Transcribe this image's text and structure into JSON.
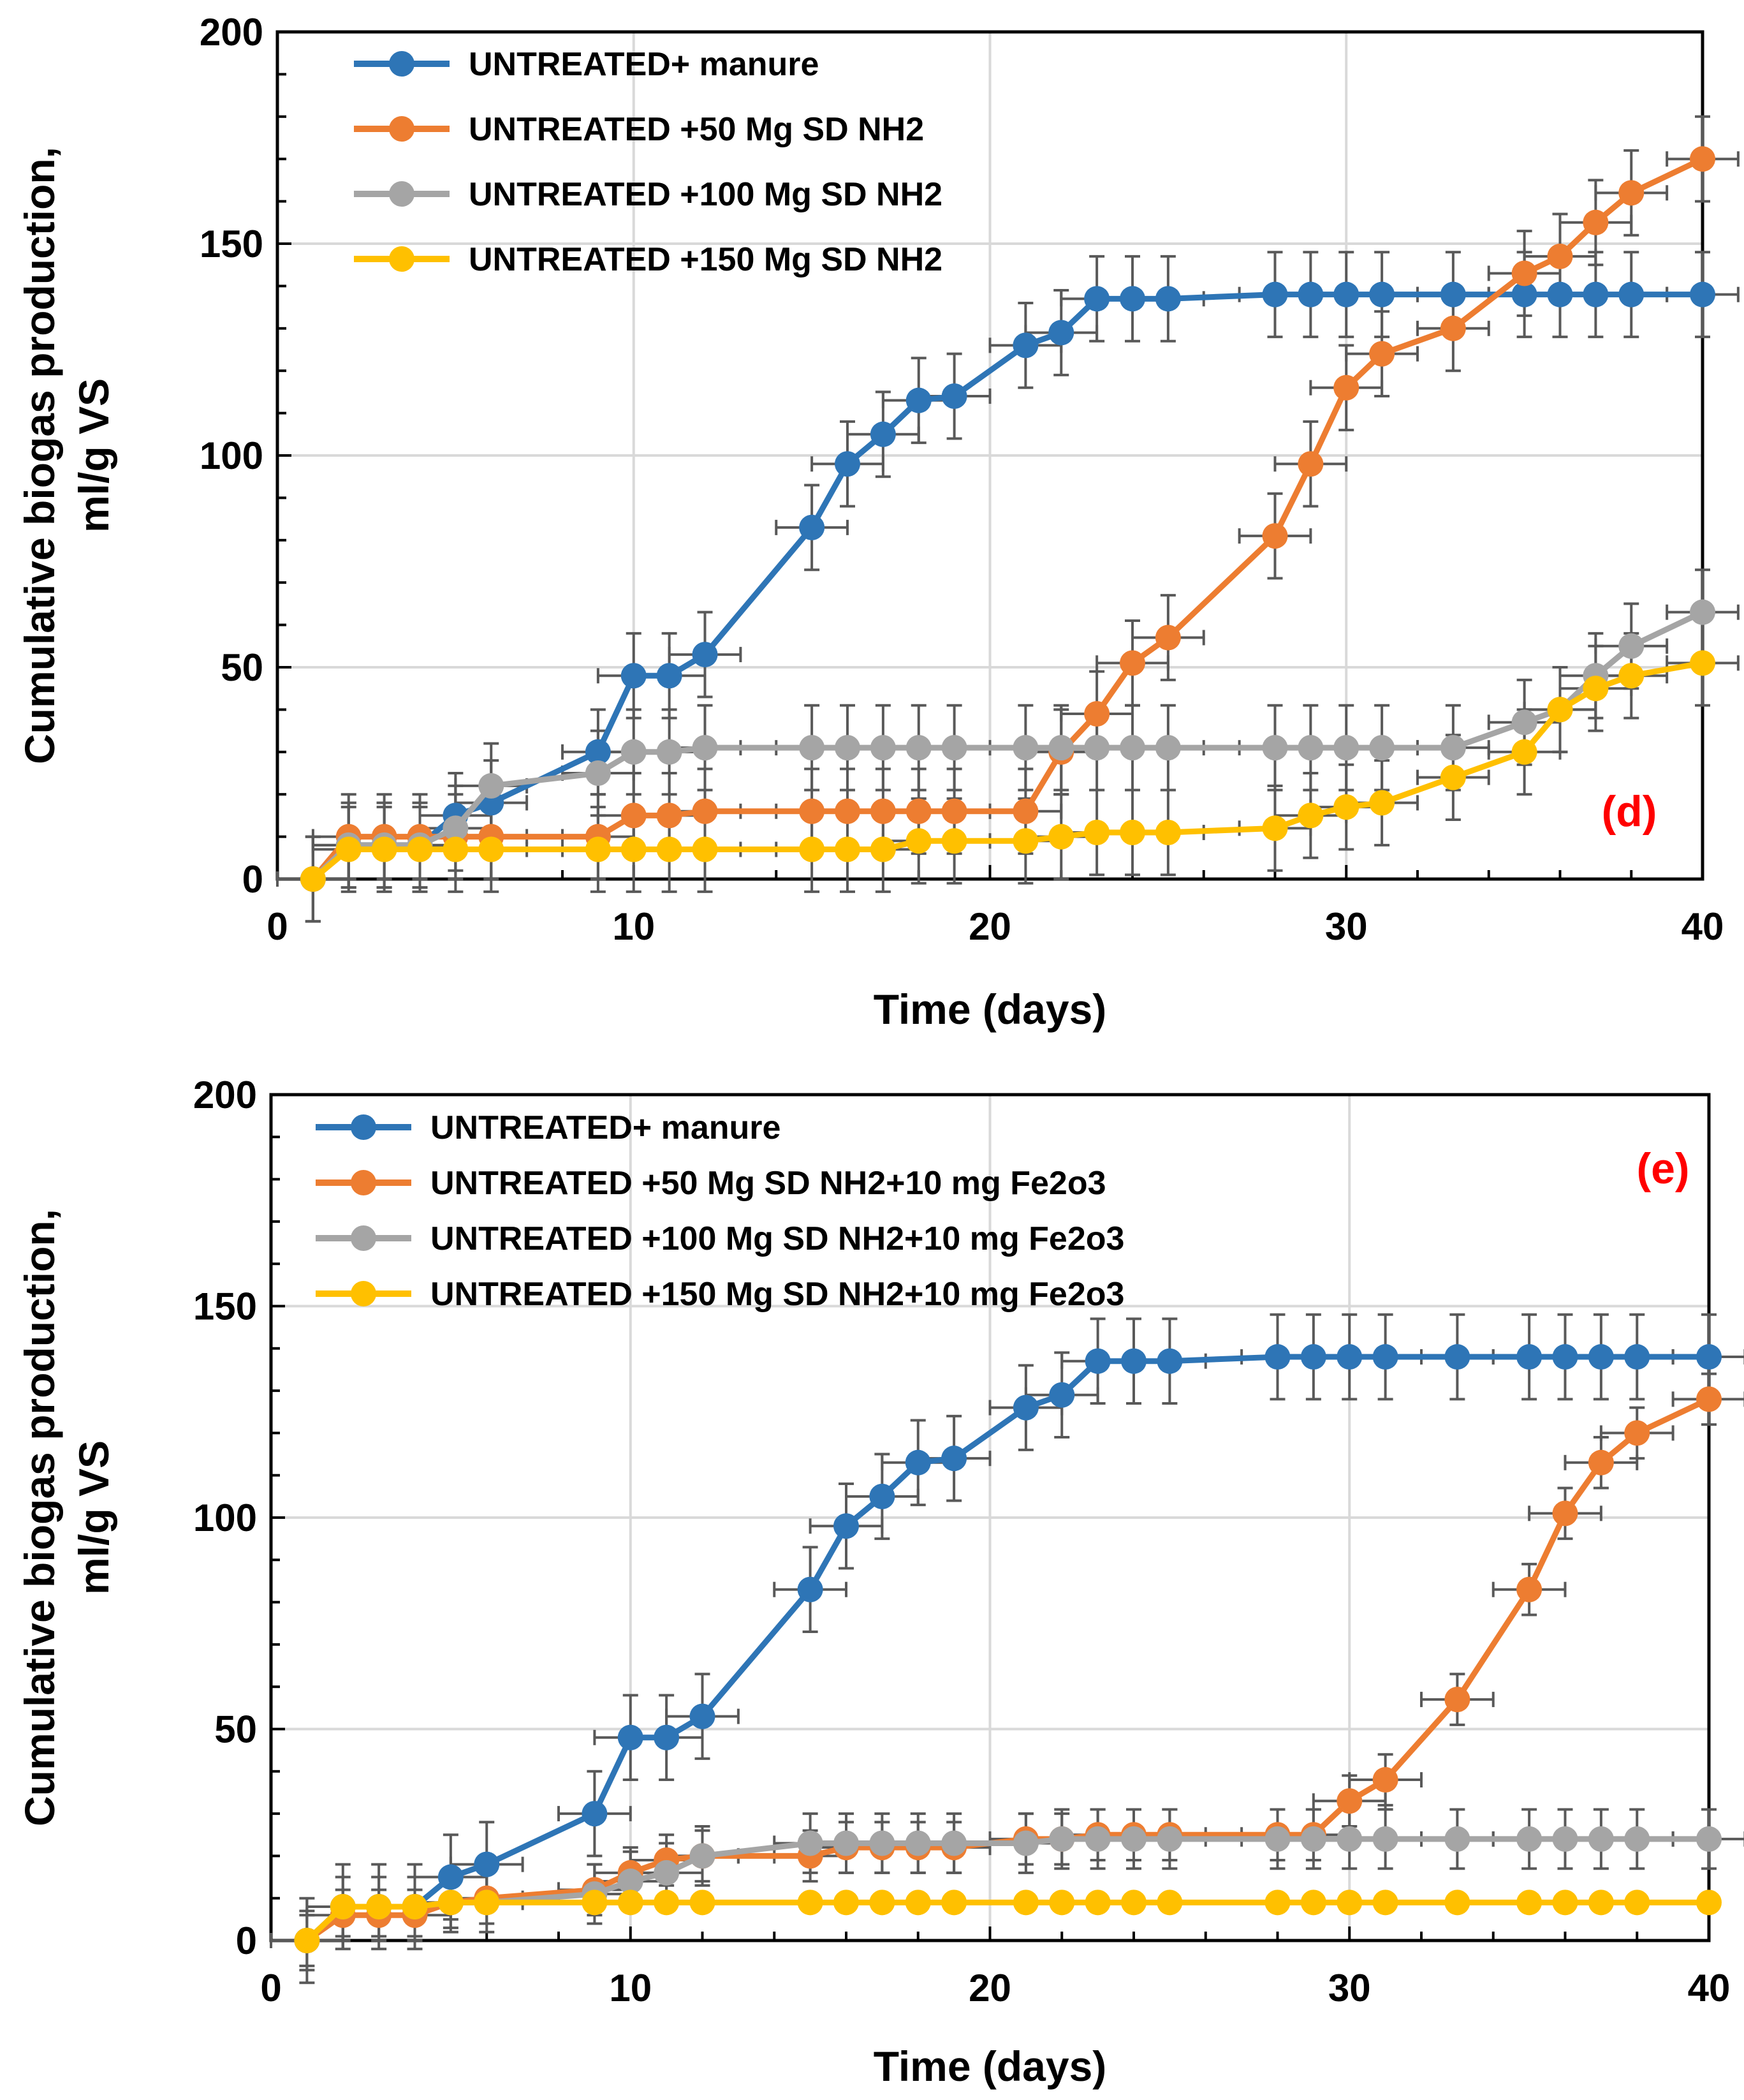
{
  "chart_data": [
    {
      "type": "line",
      "panel_label": "(d)",
      "panel_label_color": "#FF0000",
      "title": "",
      "xlabel": "Time (days)",
      "ylabel_lines": [
        "Cumulative biogas production,",
        "ml/g VS"
      ],
      "xlim": [
        0,
        40
      ],
      "ylim": [
        0,
        200
      ],
      "x_ticks": [
        0,
        10,
        20,
        30,
        40
      ],
      "y_ticks": [
        0,
        50,
        100,
        150,
        200
      ],
      "x_tick_labels": [
        "0",
        "10",
        "20",
        "30",
        "40"
      ],
      "y_tick_labels": [
        "0",
        "50",
        "100",
        "150",
        "200"
      ],
      "grid": true,
      "legend_position": "top-left",
      "series": [
        {
          "name": "UNTREATED+ manure",
          "color": "#2E75B6",
          "x": [
            1,
            2,
            3,
            4,
            5,
            6,
            9,
            10,
            11,
            12,
            15,
            16,
            17,
            18,
            19,
            21,
            22,
            23,
            24,
            25,
            28,
            29,
            30,
            31,
            33,
            35,
            36,
            37,
            38,
            40
          ],
          "y": [
            0,
            8,
            8,
            8,
            15,
            18,
            30,
            48,
            48,
            53,
            83,
            98,
            105,
            113,
            114,
            126,
            129,
            137,
            137,
            137,
            138,
            138,
            138,
            138,
            138,
            138,
            138,
            138,
            138,
            138
          ],
          "yerr": 10,
          "xerr": 1
        },
        {
          "name": "UNTREATED +50 Mg SD NH2",
          "color": "#ED7D31",
          "x": [
            1,
            2,
            3,
            4,
            5,
            6,
            9,
            10,
            11,
            12,
            15,
            16,
            17,
            18,
            19,
            21,
            22,
            23,
            24,
            25,
            28,
            29,
            30,
            31,
            33,
            35,
            36,
            37,
            38,
            40
          ],
          "y": [
            0,
            10,
            10,
            10,
            10,
            10,
            10,
            15,
            15,
            16,
            16,
            16,
            16,
            16,
            16,
            16,
            30,
            39,
            51,
            57,
            81,
            98,
            116,
            124,
            130,
            143,
            147,
            155,
            162,
            170
          ],
          "yerr": 10,
          "xerr": 1
        },
        {
          "name": "UNTREATED +100 Mg SD  NH2",
          "color": "#A5A5A5",
          "x": [
            1,
            2,
            3,
            4,
            5,
            6,
            9,
            10,
            11,
            12,
            15,
            16,
            17,
            18,
            19,
            21,
            22,
            23,
            24,
            25,
            28,
            29,
            30,
            31,
            33,
            35,
            36,
            37,
            38,
            40
          ],
          "y": [
            0,
            8,
            8,
            8,
            12,
            22,
            25,
            30,
            30,
            31,
            31,
            31,
            31,
            31,
            31,
            31,
            31,
            31,
            31,
            31,
            31,
            31,
            31,
            31,
            31,
            37,
            40,
            48,
            55,
            63
          ],
          "yerr": 10,
          "xerr": 1
        },
        {
          "name": "UNTREATED +150 Mg SD  NH2",
          "color": "#FFC000",
          "x": [
            1,
            2,
            3,
            4,
            5,
            6,
            9,
            10,
            11,
            12,
            15,
            16,
            17,
            18,
            19,
            21,
            22,
            23,
            24,
            25,
            28,
            29,
            30,
            31,
            33,
            35,
            36,
            37,
            38,
            40
          ],
          "y": [
            0,
            7,
            7,
            7,
            7,
            7,
            7,
            7,
            7,
            7,
            7,
            7,
            7,
            9,
            9,
            9,
            10,
            11,
            11,
            11,
            12,
            15,
            17,
            18,
            24,
            30,
            40,
            45,
            48,
            51
          ],
          "yerr": 10,
          "xerr": 1
        }
      ]
    },
    {
      "type": "line",
      "panel_label": "(e)",
      "panel_label_color": "#FF0000",
      "title": "",
      "xlabel": "Time (days)",
      "ylabel_lines": [
        "Cumulative biogas production,",
        "ml/g VS"
      ],
      "xlim": [
        0,
        40
      ],
      "ylim": [
        0,
        200
      ],
      "x_ticks": [
        0,
        10,
        20,
        30,
        40
      ],
      "y_ticks": [
        0,
        50,
        100,
        150,
        200
      ],
      "x_tick_labels": [
        "0",
        "10",
        "20",
        "30",
        "40"
      ],
      "y_tick_labels": [
        "0",
        "50",
        "100",
        "150",
        "200"
      ],
      "grid": true,
      "legend_position": "top-left",
      "series": [
        {
          "name": "UNTREATED+ manure",
          "color": "#2E75B6",
          "x": [
            1,
            2,
            3,
            4,
            5,
            6,
            9,
            10,
            11,
            12,
            15,
            16,
            17,
            18,
            19,
            21,
            22,
            23,
            24,
            25,
            28,
            29,
            30,
            31,
            33,
            35,
            36,
            37,
            38,
            40
          ],
          "y": [
            0,
            8,
            8,
            8,
            15,
            18,
            30,
            48,
            48,
            53,
            83,
            98,
            105,
            113,
            114,
            126,
            129,
            137,
            137,
            137,
            138,
            138,
            138,
            138,
            138,
            138,
            138,
            138,
            138,
            138
          ],
          "yerr": 10,
          "xerr": 1
        },
        {
          "name": "UNTREATED +50 Mg SD NH2+10 mg  Fe2o3",
          "color": "#ED7D31",
          "x": [
            1,
            2,
            3,
            4,
            5,
            6,
            9,
            10,
            11,
            12,
            15,
            16,
            17,
            18,
            19,
            21,
            22,
            23,
            24,
            25,
            28,
            29,
            30,
            31,
            33,
            35,
            36,
            37,
            38,
            40
          ],
          "y": [
            0,
            6,
            6,
            6,
            9,
            10,
            12,
            16,
            19,
            20,
            20,
            22,
            22,
            22,
            22,
            24,
            24,
            25,
            25,
            25,
            25,
            25,
            33,
            38,
            57,
            83,
            101,
            113,
            120,
            128
          ],
          "yerr": 6,
          "xerr": 1
        },
        {
          "name": "UNTREATED +100 Mg SD  NH2+10 mg  Fe2o3",
          "color": "#A5A5A5",
          "x": [
            1,
            2,
            3,
            4,
            5,
            6,
            9,
            10,
            11,
            12,
            15,
            16,
            17,
            18,
            19,
            21,
            22,
            23,
            24,
            25,
            28,
            29,
            30,
            31,
            33,
            35,
            36,
            37,
            38,
            40
          ],
          "y": [
            0,
            8,
            8,
            8,
            9,
            9,
            11,
            14,
            16,
            20,
            23,
            23,
            23,
            23,
            23,
            23,
            24,
            24,
            24,
            24,
            24,
            24,
            24,
            24,
            24,
            24,
            24,
            24,
            24,
            24
          ],
          "yerr": 7,
          "xerr": 1
        },
        {
          "name": "UNTREATED +150 Mg SD  NH2+10 mg  Fe2o3",
          "color": "#FFC000",
          "x": [
            1,
            2,
            3,
            4,
            5,
            6,
            9,
            10,
            11,
            12,
            15,
            16,
            17,
            18,
            19,
            21,
            22,
            23,
            24,
            25,
            28,
            29,
            30,
            31,
            33,
            35,
            36,
            37,
            38,
            40
          ],
          "y": [
            0,
            8,
            8,
            8,
            9,
            9,
            9,
            9,
            9,
            9,
            9,
            9,
            9,
            9,
            9,
            9,
            9,
            9,
            9,
            9,
            9,
            9,
            9,
            9,
            9,
            9,
            9,
            9,
            9,
            9
          ],
          "yerr": 0,
          "xerr": 0
        }
      ]
    }
  ]
}
